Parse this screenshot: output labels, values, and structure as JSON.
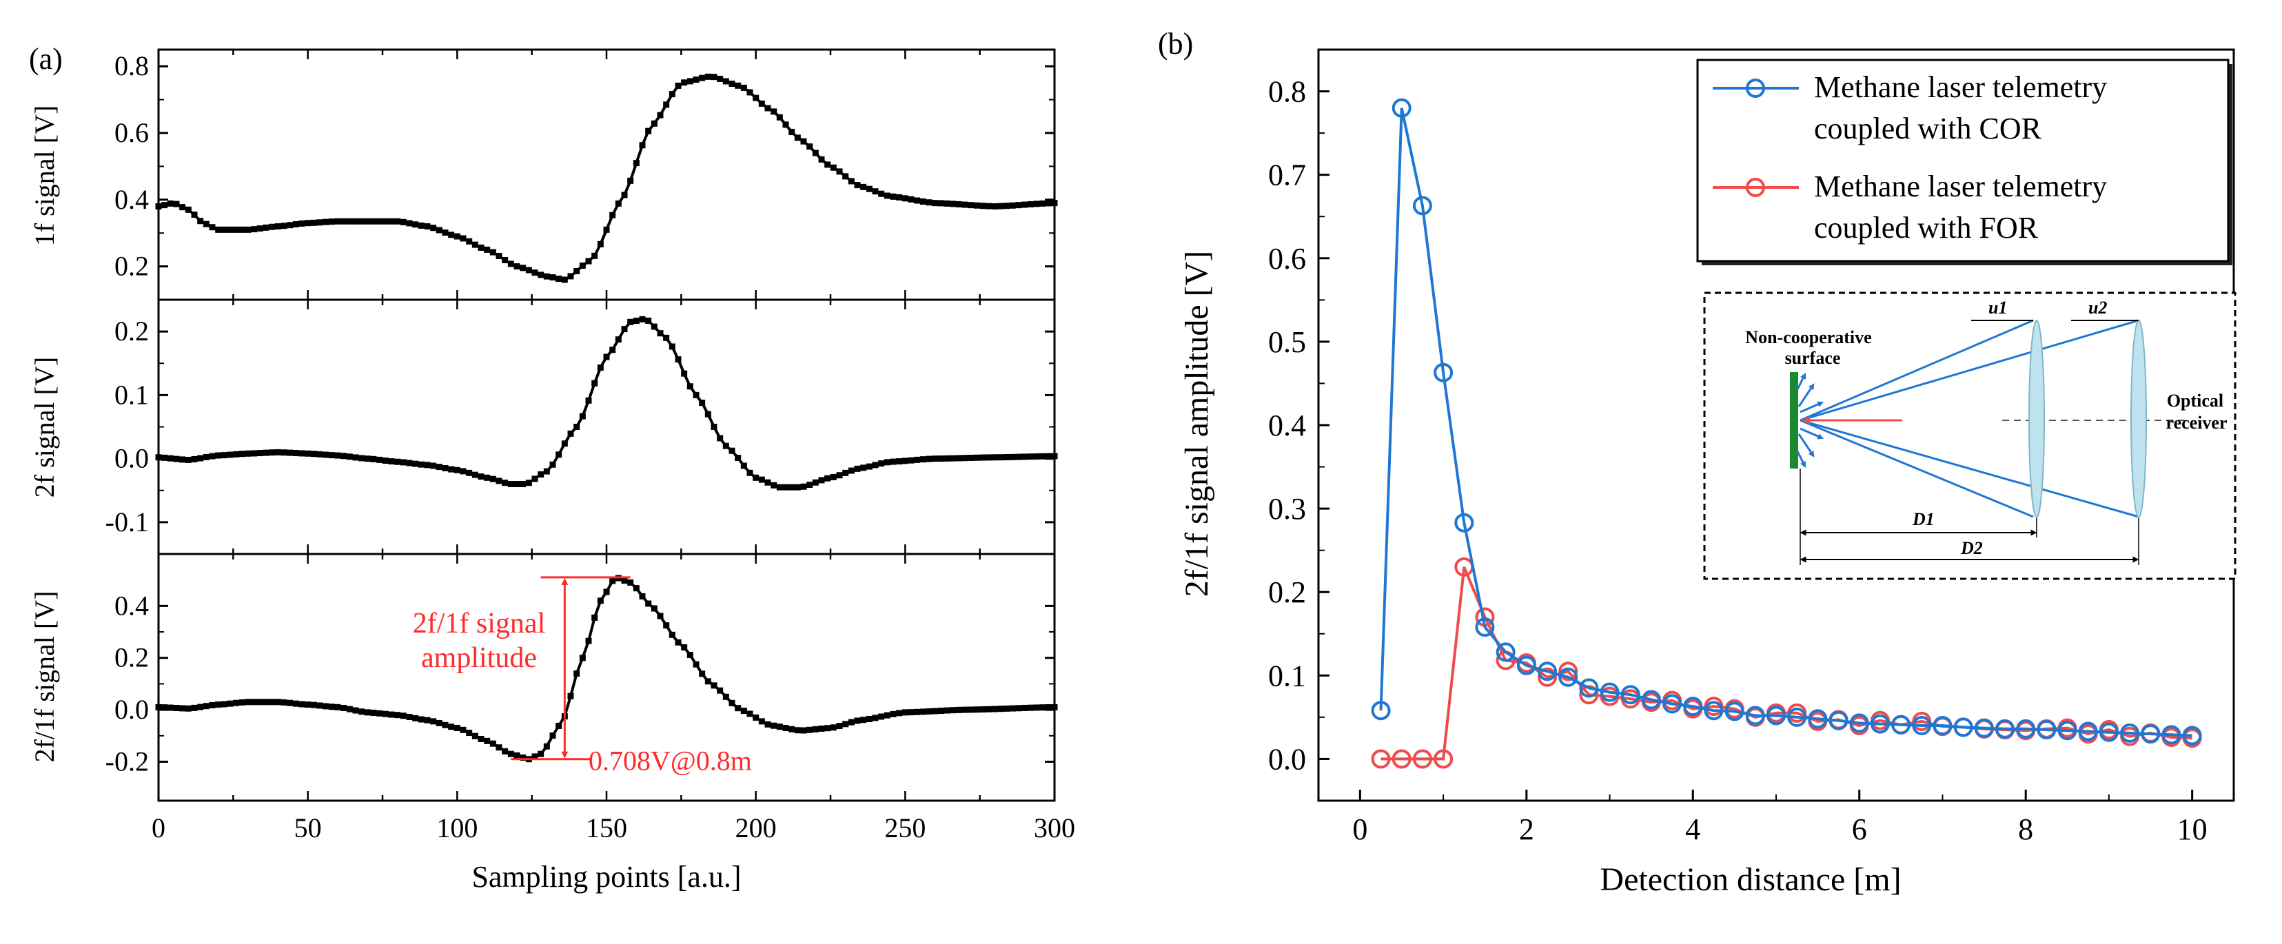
{
  "colors": {
    "black": "#000000",
    "blue": "#1f77d4",
    "red": "#f04a4a",
    "annotation": "#ff2a2a",
    "inset_green": "#1a8a2e",
    "lens": "#bfe3ee"
  },
  "panel_a": {
    "label": "(a)",
    "xlabel": "Sampling points [a.u.]",
    "x_ticks": [
      "0",
      "50",
      "100",
      "150",
      "200",
      "250",
      "300"
    ],
    "annotation": {
      "line1": "2f/1f signal",
      "line2": "amplitude",
      "value": "0.708V@0.8m"
    }
  },
  "panel_b": {
    "label": "(b)",
    "xlabel": "Detection distance [m]",
    "ylabel": "2f/1f signal amplitude [V]",
    "x_ticks": [
      "0",
      "2",
      "4",
      "6",
      "8",
      "10"
    ],
    "y_ticks": [
      "0.0",
      "0.1",
      "0.2",
      "0.3",
      "0.4",
      "0.5",
      "0.6",
      "0.7",
      "0.8"
    ],
    "legend": {
      "cor_line1": "Methane laser telemetry",
      "cor_line2": "coupled with COR",
      "for_line1": "Methane laser telemetry",
      "for_line2": "coupled with FOR"
    },
    "inset": {
      "surface_line1": "Non-cooperative",
      "surface_line2": "surface",
      "receiver_line1": "Optical",
      "receiver_line2": "receiver",
      "u1": "u1",
      "u2": "u2",
      "d1": "D1",
      "d2": "D2"
    }
  },
  "chart_data": [
    {
      "type": "line",
      "title": "",
      "xlabel": "",
      "ylabel": "1f signal [V]",
      "xlim": [
        0,
        300
      ],
      "ylim": [
        0.1,
        0.85
      ],
      "y_ticks": [
        "0.2",
        "0.4",
        "0.6",
        "0.8"
      ],
      "series": [
        {
          "x": [
            0,
            5,
            10,
            15,
            20,
            30,
            40,
            50,
            60,
            70,
            80,
            90,
            100,
            110,
            120,
            130,
            136,
            145,
            155,
            165,
            175,
            185,
            195,
            205,
            215,
            225,
            235,
            245,
            260,
            280,
            300
          ],
          "y": [
            0.38,
            0.39,
            0.37,
            0.33,
            0.31,
            0.31,
            0.32,
            0.33,
            0.335,
            0.335,
            0.335,
            0.32,
            0.29,
            0.25,
            0.2,
            0.17,
            0.16,
            0.22,
            0.4,
            0.62,
            0.75,
            0.77,
            0.74,
            0.67,
            0.58,
            0.5,
            0.44,
            0.41,
            0.39,
            0.38,
            0.39
          ]
        }
      ]
    },
    {
      "type": "line",
      "title": "",
      "xlabel": "",
      "ylabel": "2f signal [V]",
      "xlim": [
        0,
        300
      ],
      "ylim": [
        -0.15,
        0.25
      ],
      "y_ticks": [
        "-0.1",
        "0.0",
        "0.1",
        "0.2"
      ],
      "series": [
        {
          "x": [
            0,
            10,
            20,
            30,
            40,
            50,
            60,
            70,
            80,
            90,
            100,
            110,
            118,
            123,
            130,
            140,
            150,
            158,
            163,
            170,
            180,
            190,
            200,
            208,
            215,
            225,
            235,
            245,
            260,
            280,
            300
          ],
          "y": [
            0.002,
            -0.002,
            0.005,
            0.008,
            0.01,
            0.008,
            0.005,
            0.0,
            -0.005,
            -0.01,
            -0.018,
            -0.03,
            -0.04,
            -0.04,
            -0.02,
            0.05,
            0.16,
            0.215,
            0.22,
            0.19,
            0.1,
            0.02,
            -0.03,
            -0.045,
            -0.045,
            -0.03,
            -0.015,
            -0.005,
            0.0,
            0.002,
            0.004
          ]
        }
      ]
    },
    {
      "type": "line",
      "title": "",
      "xlabel": "Sampling points [a.u.]",
      "ylabel": "2f/1f signal [V]",
      "xlim": [
        0,
        300
      ],
      "ylim": [
        -0.35,
        0.6
      ],
      "y_ticks": [
        "-0.2",
        "0.0",
        "0.2",
        "0.4"
      ],
      "series": [
        {
          "x": [
            0,
            10,
            20,
            30,
            40,
            50,
            60,
            70,
            80,
            90,
            100,
            110,
            118,
            124,
            128,
            135,
            142,
            148,
            153,
            158,
            165,
            175,
            185,
            195,
            205,
            215,
            225,
            235,
            250,
            270,
            300
          ],
          "y": [
            0.01,
            0.005,
            0.02,
            0.03,
            0.03,
            0.02,
            0.01,
            -0.01,
            -0.02,
            -0.04,
            -0.07,
            -0.12,
            -0.17,
            -0.19,
            -0.17,
            -0.05,
            0.2,
            0.42,
            0.51,
            0.49,
            0.4,
            0.25,
            0.1,
            0.0,
            -0.06,
            -0.08,
            -0.07,
            -0.04,
            -0.01,
            0.0,
            0.01
          ]
        }
      ]
    },
    {
      "type": "line",
      "title": "",
      "xlabel": "Detection distance [m]",
      "ylabel": "2f/1f signal amplitude [V]",
      "xlim": [
        -0.5,
        10.5
      ],
      "ylim": [
        -0.05,
        0.85
      ],
      "legend": "top-right",
      "x": [
        0.25,
        0.5,
        0.75,
        1.0,
        1.25,
        1.5,
        1.75,
        2.0,
        2.25,
        2.5,
        2.75,
        3.0,
        3.25,
        3.5,
        3.75,
        4.0,
        4.25,
        4.5,
        4.75,
        5.0,
        5.25,
        5.5,
        5.75,
        6.0,
        6.25,
        6.5,
        6.75,
        7.0,
        7.25,
        7.5,
        7.75,
        8.0,
        8.25,
        8.5,
        8.75,
        9.0,
        9.25,
        9.5,
        9.75,
        10.0
      ],
      "series": [
        {
          "name": "Methane laser telemetry coupled with COR",
          "color": "#1f77d4",
          "values": [
            0.058,
            0.78,
            0.663,
            0.463,
            0.283,
            0.158,
            0.128,
            0.112,
            0.105,
            0.098,
            0.085,
            0.08,
            0.077,
            0.071,
            0.066,
            0.063,
            0.058,
            0.057,
            0.052,
            0.052,
            0.05,
            0.048,
            0.046,
            0.043,
            0.042,
            0.041,
            0.04,
            0.04,
            0.038,
            0.037,
            0.036,
            0.036,
            0.035,
            0.034,
            0.033,
            0.032,
            0.031,
            0.03,
            0.029,
            0.028
          ]
        },
        {
          "name": "Methane laser telemetry coupled with FOR",
          "color": "#f04a4a",
          "values": [
            0.0,
            0.0,
            0.0,
            0.0,
            0.23,
            0.17,
            0.118,
            0.115,
            0.098,
            0.105,
            0.077,
            0.075,
            0.072,
            0.068,
            0.07,
            0.06,
            0.063,
            0.06,
            0.05,
            0.055,
            0.055,
            0.045,
            0.047,
            0.04,
            0.046,
            0.041,
            0.045,
            0.039,
            0.038,
            0.036,
            0.035,
            0.034,
            0.036,
            0.037,
            0.03,
            0.035,
            0.027,
            0.031,
            0.026,
            0.025
          ]
        }
      ]
    }
  ]
}
